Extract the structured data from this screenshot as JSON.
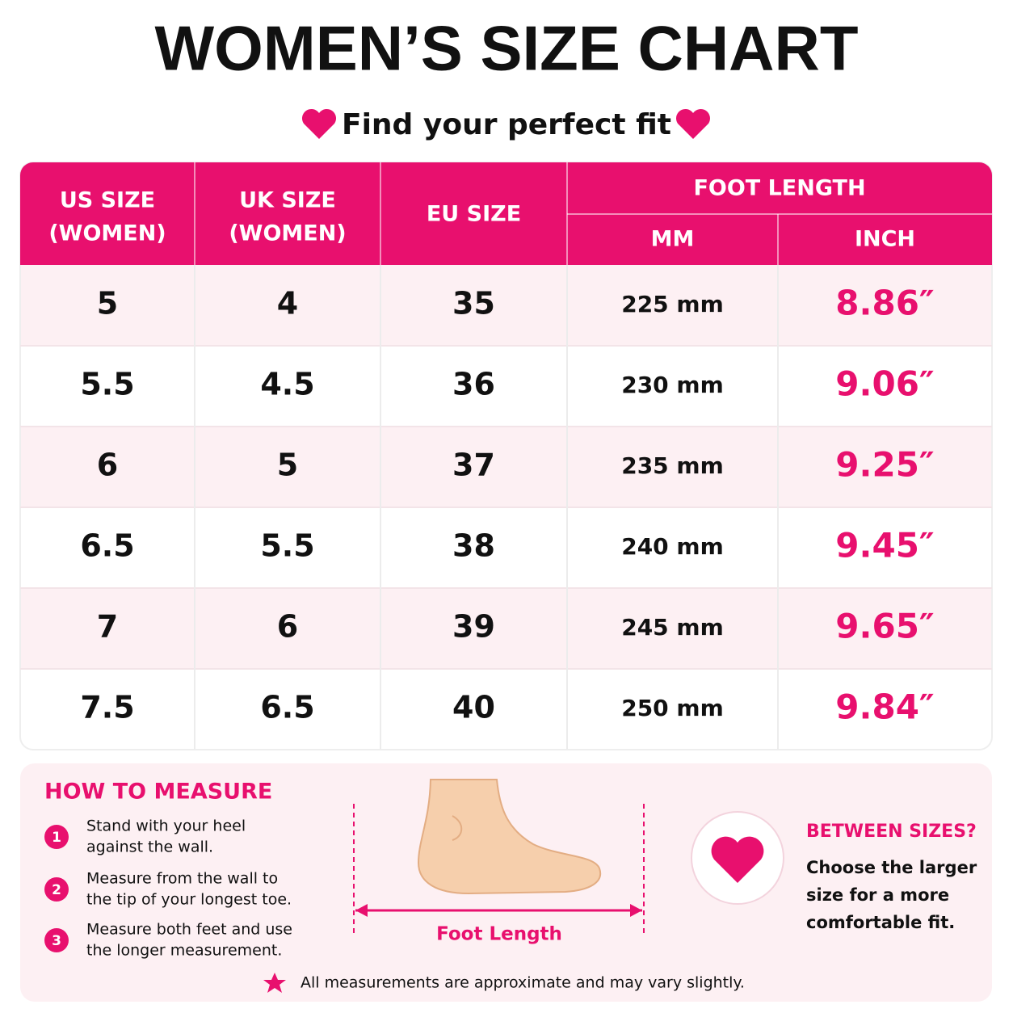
{
  "header": {
    "title": "WOMEN’S SIZE CHART",
    "subtitle": "Find your perfect fit"
  },
  "table": {
    "headers": {
      "us_size": [
        "US SIZE",
        "(WOMEN)"
      ],
      "uk_size": [
        "UK SIZE",
        "(WOMEN)"
      ],
      "eu_size": "EU SIZE",
      "foot_length": "FOOT LENGTH",
      "mm": "MM",
      "inch": "INCH"
    },
    "rows": [
      [
        "5",
        "4",
        "35",
        "225 mm",
        "8.86″"
      ],
      [
        "5.5",
        "4.5",
        "36",
        "230 mm",
        "9.06″"
      ],
      [
        "6",
        "5",
        "37",
        "235 mm",
        "9.25″"
      ],
      [
        "6.5",
        "5.5",
        "38",
        "240 mm",
        "9.45″"
      ],
      [
        "7",
        "6",
        "39",
        "245 mm",
        "9.65″"
      ],
      [
        "7.5",
        "6.5",
        "40",
        "250 mm",
        "9.84″"
      ]
    ]
  },
  "how_to_measure": {
    "title": "HOW TO MEASURE",
    "steps": [
      {
        "number": "1",
        "lines": [
          "Stand with your heel",
          "against the wall."
        ]
      },
      {
        "number": "2",
        "lines": [
          "Measure from the wall to",
          "the tip of your longest toe."
        ]
      },
      {
        "number": "3",
        "lines": [
          "Measure both feet and use",
          "the longer measurement."
        ]
      }
    ],
    "diagram_label": "Foot Length"
  },
  "between_sizes": {
    "title": "BETWEEN SIZES?",
    "lines": [
      "Choose the larger",
      "size for a more",
      "comfortable fit."
    ]
  },
  "footnote": "All measurements are approximate and may vary slightly."
}
